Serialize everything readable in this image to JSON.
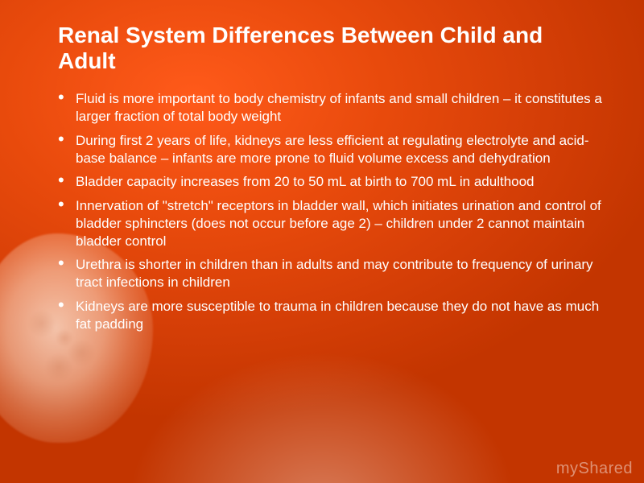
{
  "slide": {
    "title": "Renal System Differences Between Child and Adult",
    "title_color": "#ffffff",
    "title_fontsize": 28,
    "title_weight": "bold",
    "background_gradient_from": "#ff5a1a",
    "background_gradient_to": "#c33500",
    "bullet_color": "#ffffff",
    "body_fontsize": 17,
    "bullets": [
      "Fluid is more important to body chemistry of infants and small children – it constitutes a larger fraction of total body weight",
      "During first 2 years of life, kidneys are less efficient at regulating electrolyte and acid-base balance – infants are more prone to fluid volume excess and dehydration",
      "Bladder capacity increases from 20 to 50 mL at birth to 700 mL in adulthood",
      "Innervation of \"stretch\" receptors in bladder wall, which initiates urination and control of bladder sphincters (does not occur before age 2) – children under 2 cannot maintain bladder control",
      "Urethra is shorter  in children than in adults and may contribute to frequency of urinary tract infections in children",
      "Kidneys are more susceptible to trauma in children because they do not have as much fat padding"
    ]
  },
  "watermark": "myShared",
  "watermark_color": "rgba(255,255,255,0.45)"
}
